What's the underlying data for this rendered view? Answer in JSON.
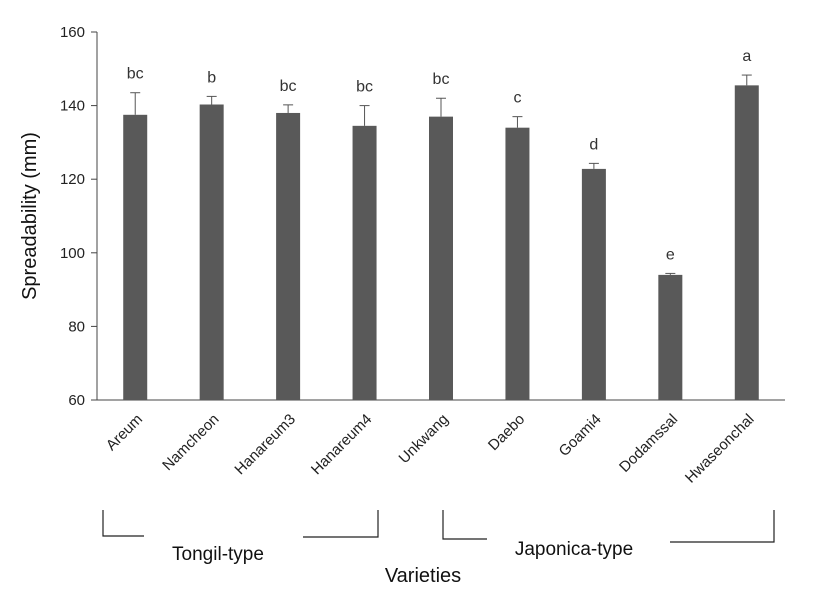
{
  "chart_data": {
    "type": "bar",
    "categories": [
      "Areum",
      "Namcheon",
      "Hanareum3",
      "Hanareum4",
      "Unkwang",
      "Daebo",
      "Goami4",
      "Dodamssal",
      "Hwaseonchal"
    ],
    "values": [
      137.5,
      140.3,
      138.0,
      134.5,
      137.0,
      134.0,
      122.8,
      94.0,
      145.5
    ],
    "errors": [
      6.0,
      2.2,
      2.2,
      5.5,
      5.0,
      3.0,
      1.5,
      0.4,
      2.8
    ],
    "significance": [
      "bc",
      "b",
      "bc",
      "bc",
      "bc",
      "c",
      "d",
      "e",
      "a"
    ],
    "xlabel": "Varieties",
    "ylabel": "Spreadability (mm)",
    "ylim": [
      60,
      160
    ],
    "yticks": [
      60,
      80,
      100,
      120,
      140,
      160
    ],
    "groups": [
      {
        "label": "Tongil-type",
        "from": 0,
        "to": 3
      },
      {
        "label": "Japonica-type",
        "from": 4,
        "to": 8
      }
    ],
    "bar_color": "#595959",
    "grid": false
  }
}
